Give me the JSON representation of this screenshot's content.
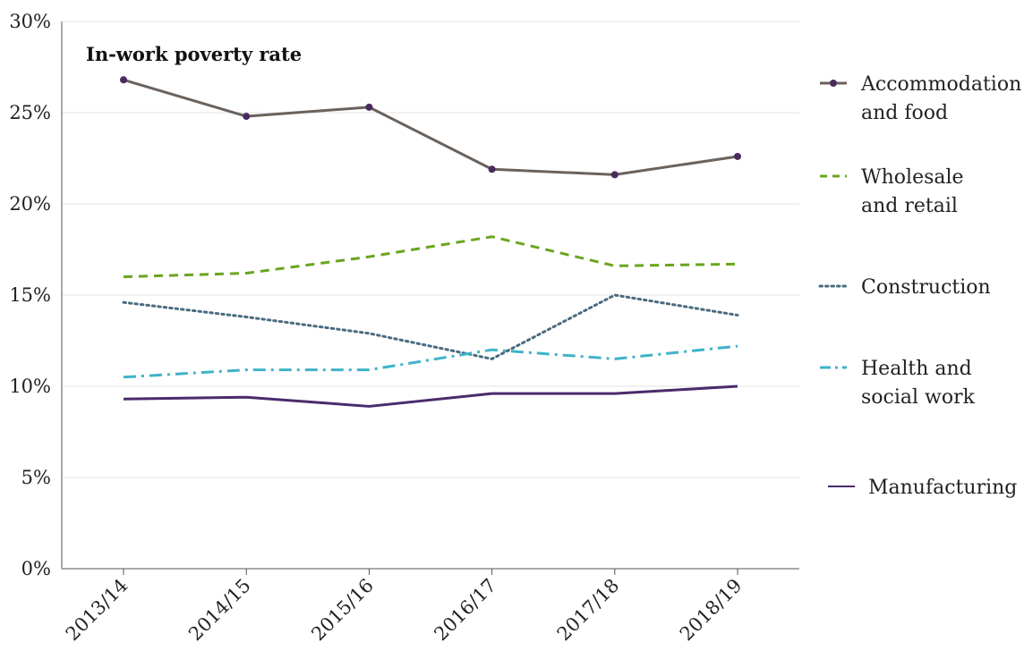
{
  "chart_data": {
    "type": "line",
    "title": "In-work poverty rate",
    "xlabel": "",
    "ylabel": "",
    "categories": [
      "2013/14",
      "2014/15",
      "2015/16",
      "2016/17",
      "2017/18",
      "2018/19"
    ],
    "ylim": [
      0,
      30
    ],
    "yticks": [
      0,
      5,
      10,
      15,
      20,
      25,
      30
    ],
    "ytick_labels": [
      "0%",
      "5%",
      "10%",
      "15%",
      "20%",
      "25%",
      "30%"
    ],
    "grid": true,
    "legend_position": "right",
    "series": [
      {
        "name": "Accommodation and food",
        "legend_lines": [
          "Accommodation",
          "and food"
        ],
        "values": [
          26.8,
          24.8,
          25.3,
          21.9,
          21.6,
          22.6
        ],
        "color": "#6b625c",
        "marker_color": "#4a2b5e",
        "style": "solid-markers"
      },
      {
        "name": "Wholesale and retail",
        "legend_lines": [
          "Wholesale",
          "and retail"
        ],
        "values": [
          16.0,
          16.2,
          17.1,
          18.2,
          16.6,
          16.7
        ],
        "color": "#6aa51f",
        "style": "dashed"
      },
      {
        "name": "Construction",
        "legend_lines": [
          "Construction"
        ],
        "values": [
          14.6,
          13.8,
          12.9,
          11.5,
          15.0,
          13.9
        ],
        "color": "#4a6b80",
        "style": "dotted"
      },
      {
        "name": "Health and social work",
        "legend_lines": [
          "Health and",
          "social work"
        ],
        "values": [
          10.5,
          10.9,
          10.9,
          12.0,
          11.5,
          12.2
        ],
        "color": "#3fb3c9",
        "style": "dashdot"
      },
      {
        "name": "Manufacturing",
        "legend_lines": [
          "Manufacturing"
        ],
        "values": [
          9.3,
          9.4,
          8.9,
          9.6,
          9.6,
          10.0
        ],
        "color": "#4a2b6b",
        "style": "solid"
      }
    ]
  }
}
